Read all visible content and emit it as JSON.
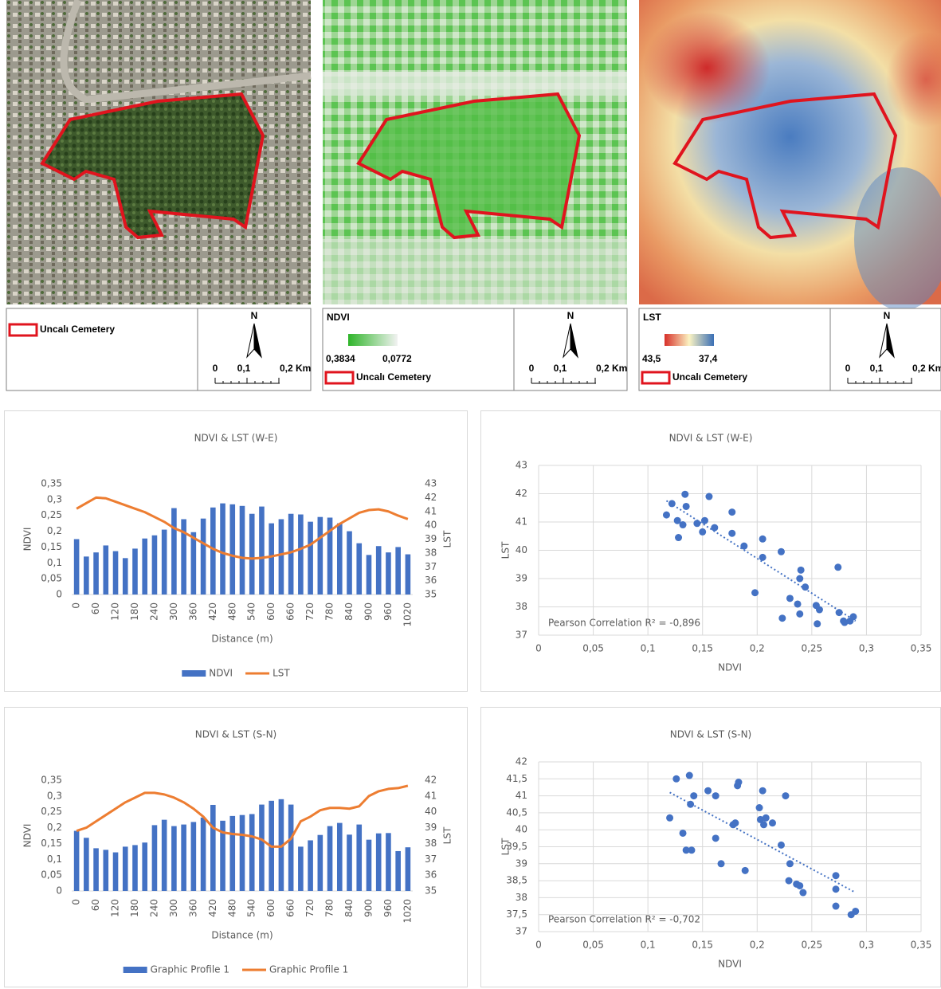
{
  "maps": [
    {
      "feature_label": "Uncalı Cemetery",
      "north": "N",
      "scale_labels": [
        "0",
        "0,1",
        "0,2 Km"
      ]
    },
    {
      "legend_title": "NDVI",
      "ramp_labels": [
        "0,3834",
        "0,0772"
      ],
      "feature_label": "Uncalı Cemetery",
      "north": "N",
      "scale_labels": [
        "0",
        "0,1",
        "0,2 Km"
      ]
    },
    {
      "legend_title": "LST",
      "ramp_labels": [
        "43,5",
        "37,4"
      ],
      "feature_label": "Uncalı Cemetery",
      "north": "N",
      "scale_labels": [
        "0",
        "0,1",
        "0,2 Km"
      ]
    }
  ],
  "chart_data": [
    {
      "type": "combo",
      "title": "NDVI & LST (W-E)",
      "x_label": "Distance (m)",
      "y_label": "NDVI",
      "y2_label": "LST",
      "categories": [
        0,
        null,
        60,
        null,
        120,
        null,
        180,
        null,
        240,
        null,
        300,
        null,
        360,
        null,
        420,
        null,
        480,
        null,
        540,
        null,
        600,
        null,
        660,
        null,
        720,
        null,
        780,
        null,
        840,
        null,
        900,
        null,
        960,
        null,
        1020
      ],
      "series": [
        {
          "name": "NDVI",
          "color": "#4472c4",
          "type": "bar",
          "values": [
            0.175,
            0.12,
            0.133,
            0.155,
            0.137,
            0.115,
            0.145,
            0.177,
            0.187,
            0.205,
            0.273,
            0.238,
            0.197,
            0.24,
            0.275,
            0.288,
            0.285,
            0.28,
            0.255,
            0.278,
            0.225,
            0.238,
            0.255,
            0.253,
            0.23,
            0.245,
            0.243,
            0.225,
            0.2,
            0.162,
            0.125,
            0.153,
            0.133,
            0.15,
            0.127
          ]
        },
        {
          "name": "LST",
          "color": "#ed7d31",
          "type": "line",
          "axis": "y2",
          "values": [
            41.2,
            41.6,
            42.0,
            41.95,
            41.7,
            41.45,
            41.2,
            40.95,
            40.6,
            40.25,
            39.8,
            39.5,
            39.1,
            38.7,
            38.3,
            38.0,
            37.8,
            37.65,
            37.6,
            37.65,
            37.75,
            37.9,
            38.05,
            38.3,
            38.6,
            39.1,
            39.6,
            40.1,
            40.5,
            40.9,
            41.1,
            41.15,
            41.0,
            40.7,
            40.45
          ]
        }
      ],
      "ylim": [
        0,
        0.35
      ],
      "yticks": [
        0,
        {
          "value": 0.05,
          "label": "0,05"
        },
        {
          "value": 0.1,
          "label": "0,1"
        },
        {
          "value": 0.15,
          "label": "0,15"
        },
        {
          "value": 0.2,
          "label": "0,2"
        },
        {
          "value": 0.25,
          "label": "0,25"
        },
        {
          "value": 0.3,
          "label": "0,3"
        },
        {
          "value": 0.35,
          "label": "0,35"
        }
      ],
      "y2lim": [
        35,
        43
      ],
      "y2ticks": [
        35,
        36,
        37,
        38,
        39,
        40,
        41,
        42,
        43
      ],
      "grid": false
    },
    {
      "type": "scatter",
      "title": "NDVI & LST (W-E)",
      "x_label": "NDVI",
      "y_label": "LST",
      "annotation": "Pearson Correlation R² = -0,896",
      "color": "#4472c4",
      "x": [
        0.117,
        0.122,
        0.127,
        0.128,
        0.132,
        0.134,
        0.135,
        0.145,
        0.15,
        0.152,
        0.156,
        0.161,
        0.177,
        0.177,
        0.188,
        0.198,
        0.205,
        0.205,
        0.222,
        0.223,
        0.23,
        0.237,
        0.239,
        0.239,
        0.24,
        0.244,
        0.254,
        0.255,
        0.257,
        0.274,
        0.275,
        0.279,
        0.28,
        0.285,
        0.288
      ],
      "y": [
        41.25,
        41.65,
        41.05,
        40.45,
        40.9,
        41.98,
        41.55,
        40.95,
        40.65,
        41.05,
        41.9,
        40.8,
        41.35,
        40.6,
        40.15,
        38.5,
        40.4,
        39.75,
        39.95,
        37.6,
        38.3,
        38.1,
        37.75,
        39.0,
        39.3,
        38.7,
        38.05,
        37.4,
        37.9,
        39.4,
        37.8,
        37.5,
        37.45,
        37.5,
        37.65
      ],
      "trendline": {
        "x": [
          0.117,
          0.29
        ],
        "y": [
          41.75,
          37.5
        ]
      },
      "xlim": [
        0,
        0.35
      ],
      "xticks": [
        0,
        {
          "value": 0.05,
          "label": "0,05"
        },
        {
          "value": 0.1,
          "label": "0,1"
        },
        {
          "value": 0.15,
          "label": "0,15"
        },
        {
          "value": 0.2,
          "label": "0,2"
        },
        {
          "value": 0.25,
          "label": "0,25"
        },
        {
          "value": 0.3,
          "label": "0,3"
        },
        {
          "value": 0.35,
          "label": "0,35"
        }
      ],
      "ylim": [
        37,
        43
      ],
      "yticks": [
        37,
        38,
        39,
        40,
        41,
        42,
        43
      ],
      "grid": true
    },
    {
      "type": "combo",
      "title": "NDVI & LST (S-N)",
      "x_label": "Distance (m)",
      "y_label": "NDVI",
      "y2_label": "LST",
      "categories": [
        0,
        null,
        60,
        null,
        120,
        null,
        180,
        null,
        240,
        null,
        300,
        null,
        360,
        null,
        420,
        null,
        480,
        null,
        540,
        null,
        600,
        null,
        660,
        null,
        720,
        null,
        780,
        null,
        840,
        null,
        900,
        null,
        960,
        null,
        1020
      ],
      "series": [
        {
          "name": "Graphic Profile 1",
          "color": "#4472c4",
          "type": "bar",
          "values": [
            0.19,
            0.168,
            0.135,
            0.13,
            0.122,
            0.14,
            0.145,
            0.153,
            0.208,
            0.225,
            0.205,
            0.21,
            0.218,
            0.232,
            0.272,
            0.222,
            0.237,
            0.24,
            0.243,
            0.273,
            0.285,
            0.29,
            0.273,
            0.14,
            0.16,
            0.177,
            0.205,
            0.215,
            0.178,
            0.21,
            0.162,
            0.182,
            0.183,
            0.126,
            0.138
          ]
        },
        {
          "name": "Graphic Profile 1",
          "color": "#ed7d31",
          "type": "line",
          "axis": "y2",
          "values": [
            38.8,
            39.0,
            39.4,
            39.8,
            40.2,
            40.6,
            40.9,
            41.2,
            41.2,
            41.1,
            40.9,
            40.6,
            40.2,
            39.7,
            39.0,
            38.7,
            38.6,
            38.55,
            38.45,
            38.25,
            37.8,
            37.8,
            38.3,
            39.4,
            39.7,
            40.1,
            40.25,
            40.25,
            40.2,
            40.35,
            41.0,
            41.3,
            41.45,
            41.5,
            41.65
          ]
        }
      ],
      "ylim": [
        0,
        0.35
      ],
      "yticks": [
        0,
        {
          "value": 0.05,
          "label": "0,05"
        },
        {
          "value": 0.1,
          "label": "0,1"
        },
        {
          "value": 0.15,
          "label": "0,15"
        },
        {
          "value": 0.2,
          "label": "0,2"
        },
        {
          "value": 0.25,
          "label": "0,25"
        },
        {
          "value": 0.3,
          "label": "0,3"
        },
        {
          "value": 0.35,
          "label": "0,35"
        }
      ],
      "y2lim": [
        35,
        42
      ],
      "y2ticks": [
        35,
        36,
        37,
        38,
        39,
        40,
        41,
        42
      ],
      "grid": false
    },
    {
      "type": "scatter",
      "title": "NDVI & LST (S-N)",
      "x_label": "NDVI",
      "y_label": "LST",
      "annotation": "Pearson Correlation R² = -0,702",
      "color": "#4472c4",
      "x": [
        0.12,
        0.126,
        0.132,
        0.135,
        0.138,
        0.139,
        0.14,
        0.142,
        0.155,
        0.162,
        0.162,
        0.167,
        0.178,
        0.18,
        0.182,
        0.183,
        0.189,
        0.202,
        0.203,
        0.205,
        0.206,
        0.208,
        0.214,
        0.222,
        0.226,
        0.229,
        0.23,
        0.236,
        0.239,
        0.242,
        0.272,
        0.272,
        0.272,
        0.286,
        0.29
      ],
      "y": [
        40.35,
        41.5,
        39.9,
        39.4,
        41.6,
        40.75,
        39.4,
        41.0,
        41.15,
        41.0,
        39.75,
        39.0,
        40.15,
        40.2,
        41.3,
        41.4,
        38.8,
        40.65,
        40.3,
        41.15,
        40.15,
        40.35,
        40.2,
        39.55,
        41.0,
        38.5,
        39.0,
        38.4,
        38.35,
        38.15,
        38.65,
        38.25,
        37.75,
        37.5,
        37.6
      ],
      "trendline": {
        "x": [
          0.12,
          0.29
        ],
        "y": [
          41.1,
          38.15
        ]
      },
      "xlim": [
        0,
        0.35
      ],
      "xticks": [
        0,
        {
          "value": 0.05,
          "label": "0,05"
        },
        {
          "value": 0.1,
          "label": "0,1"
        },
        {
          "value": 0.15,
          "label": "0,15"
        },
        {
          "value": 0.2,
          "label": "0,2"
        },
        {
          "value": 0.25,
          "label": "0,25"
        },
        {
          "value": 0.3,
          "label": "0,3"
        },
        {
          "value": 0.35,
          "label": "0,35"
        }
      ],
      "ylim": [
        37,
        42
      ],
      "yticks": [
        37,
        {
          "value": 37.5,
          "label": "37,5"
        },
        38,
        {
          "value": 38.5,
          "label": "38,5"
        },
        39,
        {
          "value": 39.5,
          "label": "39,5"
        },
        40,
        {
          "value": 40.5,
          "label": "40,5"
        },
        41,
        {
          "value": 41.5,
          "label": "41,5"
        },
        42
      ],
      "grid": true
    }
  ]
}
